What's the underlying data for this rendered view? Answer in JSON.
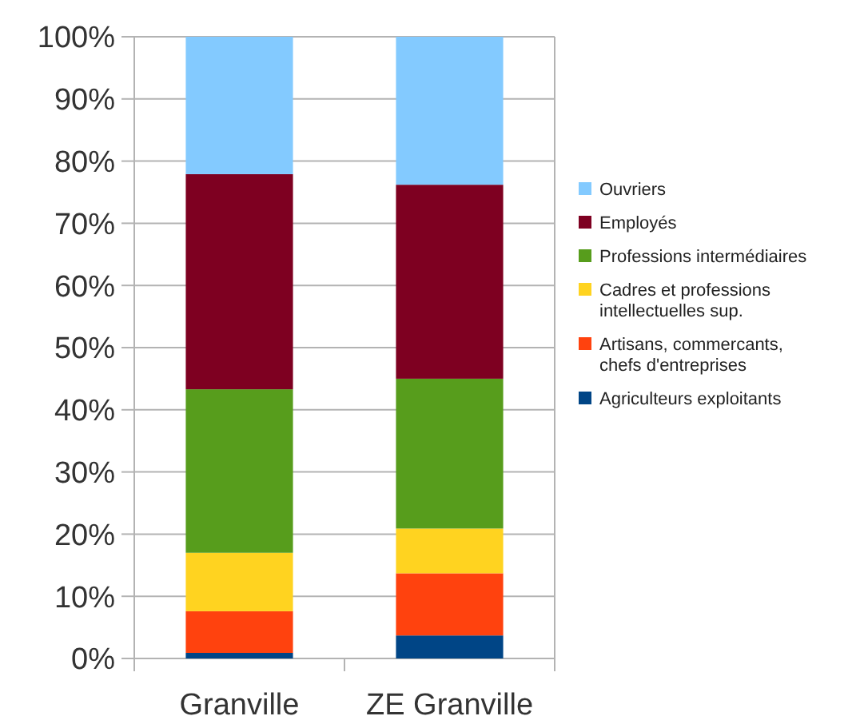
{
  "chart_data": {
    "type": "bar",
    "stacked": true,
    "categories": [
      "Granville",
      "ZE Granville"
    ],
    "series": [
      {
        "name": "Agriculteurs exploitants",
        "color": "#004586",
        "values": [
          0.9,
          3.7
        ]
      },
      {
        "name": "Artisans, commercants, chefs d'entreprises",
        "color": "#ff420e",
        "values": [
          6.7,
          10.0
        ]
      },
      {
        "name": "Cadres et professions intellectuelles sup.",
        "color": "#ffd320",
        "values": [
          9.4,
          7.2
        ]
      },
      {
        "name": "Professions intermédiaires",
        "color": "#579d1c",
        "values": [
          26.3,
          24.1
        ]
      },
      {
        "name": "Employés",
        "color": "#7e0021",
        "values": [
          34.6,
          31.2
        ]
      },
      {
        "name": "Ouvriers",
        "color": "#83caff",
        "values": [
          22.1,
          23.8
        ]
      }
    ],
    "ylim": [
      0,
      100
    ],
    "yticks": [
      {
        "value": 0,
        "label": "0%"
      },
      {
        "value": 10,
        "label": "10%"
      },
      {
        "value": 20,
        "label": "20%"
      },
      {
        "value": 30,
        "label": "30%"
      },
      {
        "value": 40,
        "label": "40%"
      },
      {
        "value": 50,
        "label": "50%"
      },
      {
        "value": 60,
        "label": "60%"
      },
      {
        "value": 70,
        "label": "70%"
      },
      {
        "value": 80,
        "label": "80%"
      },
      {
        "value": 90,
        "label": "90%"
      },
      {
        "value": 100,
        "label": "100%"
      }
    ],
    "grid": "y",
    "legend": "right"
  }
}
